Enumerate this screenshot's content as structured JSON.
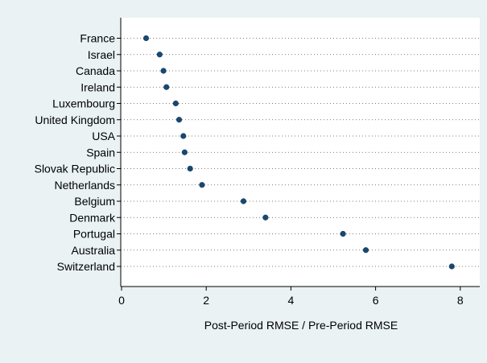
{
  "chart_data": {
    "type": "scatter",
    "orientation": "horizontal-dot",
    "categories": [
      "France",
      "Israel",
      "Canada",
      "Ireland",
      "Luxembourg",
      "United Kingdom",
      "USA",
      "Spain",
      "Slovak Republic",
      "Netherlands",
      "Belgium",
      "Denmark",
      "Portugal",
      "Australia",
      "Switzerland"
    ],
    "values": [
      0.58,
      0.9,
      0.99,
      1.06,
      1.28,
      1.36,
      1.46,
      1.49,
      1.62,
      1.9,
      2.88,
      3.4,
      5.23,
      5.77,
      7.8
    ],
    "xlabel": "Post-Period RMSE / Pre-Period RMSE",
    "ylabel": "",
    "xlim": [
      0,
      8.2
    ],
    "xticks": [
      0,
      2,
      4,
      6,
      8
    ],
    "grid": "dotted horizontal guide lines",
    "marker_color": "#1a476f",
    "plot_background": "#ffffff",
    "page_background": "#eaf2f3"
  }
}
